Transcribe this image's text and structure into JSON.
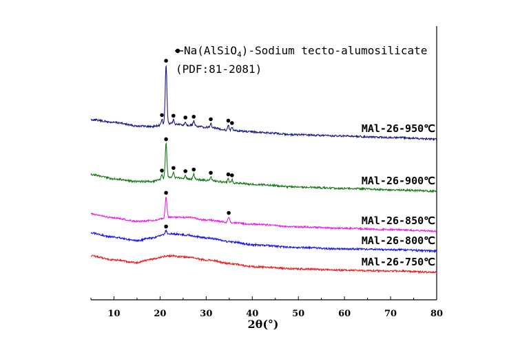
{
  "chart_data": {
    "type": "line",
    "xlabel": "2θ(°)",
    "xlim": [
      5,
      80
    ],
    "x_ticks": [
      "10",
      "20",
      "30",
      "40",
      "50",
      "60",
      "70",
      "80"
    ],
    "y_ticks_labeled": false,
    "grid": false,
    "legend": {
      "placement": "top-center",
      "marker": "circle",
      "text_prefix": "Na(AlSiO",
      "text_sub": "4",
      "text_suffix": ")-Sodium tecto-alumosilicate",
      "text_line2": "(PDF:81-2081)"
    },
    "series": [
      {
        "name": "MAl-26-950℃",
        "color": "#1a1a80",
        "baseline_profile": [
          [
            5,
            174
          ],
          [
            10,
            178
          ],
          [
            15,
            183
          ],
          [
            18,
            184
          ],
          [
            22,
            180
          ],
          [
            26,
            182
          ],
          [
            30,
            185
          ],
          [
            36,
            190
          ],
          [
            40,
            192
          ],
          [
            50,
            196
          ],
          [
            60,
            198
          ],
          [
            70,
            200
          ],
          [
            80,
            202
          ]
        ],
        "noise": 1.4,
        "peaks": [
          [
            21.3,
            86,
            0.18
          ],
          [
            20.4,
            8,
            0.15
          ],
          [
            22.9,
            6,
            0.15
          ],
          [
            25.5,
            5,
            0.15
          ],
          [
            27.3,
            7,
            0.15
          ],
          [
            31.0,
            6,
            0.15
          ],
          [
            34.8,
            8,
            0.15
          ],
          [
            35.6,
            5,
            0.15
          ]
        ],
        "markers": [
          21.3,
          20.4,
          22.9,
          25.5,
          27.3,
          31.0,
          34.8,
          35.6
        ]
      },
      {
        "name": "MAl-26-900℃",
        "color": "#147814",
        "baseline_profile": [
          [
            5,
            254
          ],
          [
            10,
            260
          ],
          [
            15,
            264
          ],
          [
            18,
            264
          ],
          [
            22,
            258
          ],
          [
            26,
            260
          ],
          [
            30,
            262
          ],
          [
            36,
            266
          ],
          [
            40,
            268
          ],
          [
            50,
            272
          ],
          [
            60,
            274
          ],
          [
            70,
            276
          ],
          [
            80,
            278
          ]
        ],
        "noise": 1.4,
        "peaks": [
          [
            21.3,
            50,
            0.18
          ],
          [
            20.4,
            6,
            0.15
          ],
          [
            22.9,
            8,
            0.15
          ],
          [
            25.5,
            5,
            0.15
          ],
          [
            27.3,
            8,
            0.15
          ],
          [
            31.0,
            5,
            0.15
          ],
          [
            34.8,
            6,
            0.15
          ],
          [
            35.6,
            5,
            0.15
          ]
        ],
        "markers": [
          21.3,
          20.4,
          22.9,
          25.5,
          27.3,
          31.0,
          34.8,
          35.6
        ]
      },
      {
        "name": "MAl-26-850℃",
        "color": "#e61ee6",
        "baseline_profile": [
          [
            5,
            311
          ],
          [
            10,
            317
          ],
          [
            15,
            322
          ],
          [
            18,
            321
          ],
          [
            22,
            316
          ],
          [
            26,
            316
          ],
          [
            30,
            320
          ],
          [
            36,
            324
          ],
          [
            40,
            326
          ],
          [
            50,
            330
          ],
          [
            60,
            332
          ],
          [
            70,
            334
          ],
          [
            80,
            336
          ]
        ],
        "noise": 1.2,
        "peaks": [
          [
            21.3,
            30,
            0.18
          ],
          [
            34.9,
            8,
            0.2
          ]
        ],
        "markers": [
          21.3,
          34.9
        ]
      },
      {
        "name": "MAl-26-800℃",
        "color": "#1414e6",
        "baseline_profile": [
          [
            5,
            339
          ],
          [
            10,
            345
          ],
          [
            15,
            350
          ],
          [
            18,
            346
          ],
          [
            22,
            340
          ],
          [
            26,
            342
          ],
          [
            30,
            346
          ],
          [
            36,
            352
          ],
          [
            40,
            356
          ],
          [
            50,
            360
          ],
          [
            60,
            362
          ],
          [
            70,
            363
          ],
          [
            80,
            365
          ]
        ],
        "noise": 1.3,
        "peaks": [
          [
            21.3,
            5,
            0.18
          ]
        ],
        "markers": [
          21.3
        ]
      },
      {
        "name": "MAl-26-750℃",
        "color": "#e61e1e",
        "baseline_profile": [
          [
            5,
            372
          ],
          [
            10,
            378
          ],
          [
            15,
            382
          ],
          [
            18,
            377
          ],
          [
            22,
            372
          ],
          [
            26,
            374
          ],
          [
            30,
            378
          ],
          [
            36,
            384
          ],
          [
            40,
            388
          ],
          [
            50,
            391
          ],
          [
            60,
            393
          ],
          [
            70,
            394
          ],
          [
            80,
            396
          ]
        ],
        "noise": 1.3,
        "peaks": [],
        "markers": []
      }
    ]
  }
}
